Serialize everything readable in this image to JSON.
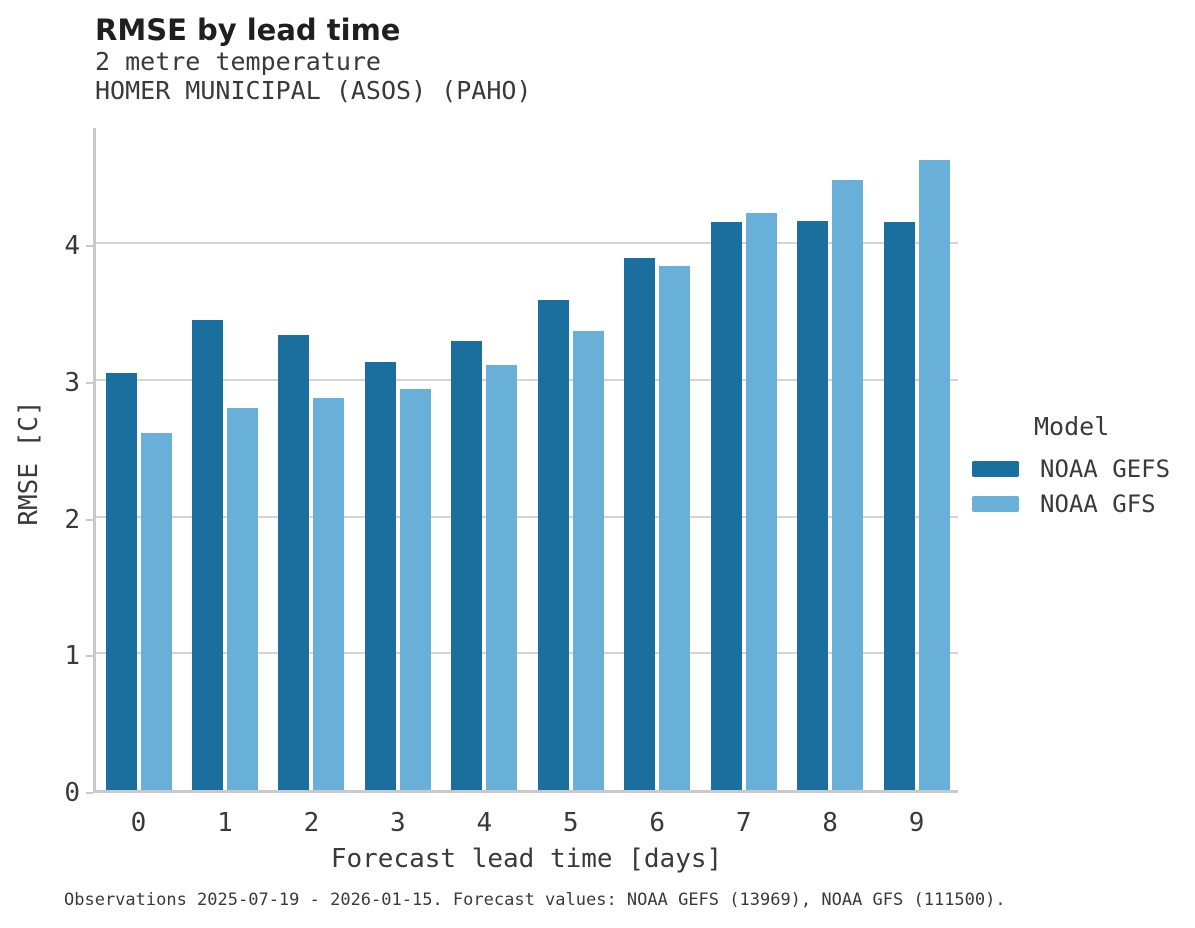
{
  "header": {
    "title": "RMSE by lead time",
    "subtitle_line1": "2 metre temperature",
    "subtitle_line2": "HOMER MUNICIPAL (ASOS) (PAHO)"
  },
  "legend": {
    "title": "Model",
    "items": [
      {
        "label": "NOAA GEFS",
        "color": "#1a6f9e"
      },
      {
        "label": "NOAA GFS",
        "color": "#69b0d8"
      }
    ]
  },
  "footer": {
    "text": "Observations 2025-07-19 - 2026-01-15. Forecast values: NOAA GEFS (13969), NOAA GFS (111500)."
  },
  "colors": {
    "series_dark_blue": "#1a6f9e",
    "series_light_blue": "#69b0d8",
    "gridline": "#d4d4d4",
    "axis_spine": "#c9c9c9",
    "text": "#3a3a3a",
    "title_text": "#1f1f1f"
  },
  "chart_data": {
    "type": "bar",
    "title": "RMSE by lead time",
    "subtitle": "2 metre temperature — HOMER MUNICIPAL (ASOS) (PAHO)",
    "xlabel": "Forecast lead time [days]",
    "ylabel": "RMSE [C]",
    "categories": [
      "0",
      "1",
      "2",
      "3",
      "4",
      "5",
      "6",
      "7",
      "8",
      "9"
    ],
    "series": [
      {
        "name": "NOAA GEFS",
        "color": "#1a6f9e",
        "values": [
          3.05,
          3.44,
          3.33,
          3.13,
          3.28,
          3.58,
          3.89,
          4.15,
          4.16,
          4.15
        ]
      },
      {
        "name": "NOAA GFS",
        "color": "#69b0d8",
        "values": [
          2.61,
          2.79,
          2.87,
          2.93,
          3.11,
          3.36,
          3.83,
          4.22,
          4.46,
          4.61
        ]
      }
    ],
    "ylim": [
      0,
      4.86
    ],
    "yticks": [
      0,
      1,
      2,
      3,
      4
    ],
    "grid": "horizontal",
    "legend_title": "Model",
    "legend_position": "right"
  }
}
